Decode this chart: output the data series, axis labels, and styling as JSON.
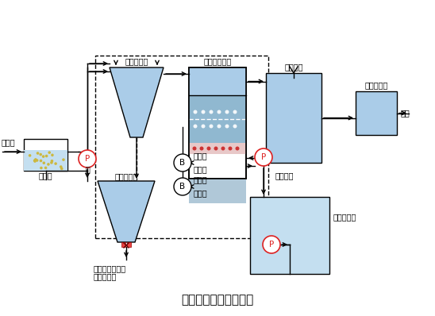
{
  "title": "生物滤池污水处理系统",
  "bg_color": "#ffffff",
  "wc": "#aacce8",
  "wc_light": "#c4dff0",
  "wc_dark": "#88b8d8",
  "wc_media": "#90b8d0",
  "lc": "#000000",
  "rc": "#dd2222",
  "sand_color": "#ccb840",
  "labels": {
    "yuan_wu_shui": "原污水",
    "chen_sha_chi": "沉砂池",
    "beng": "泵",
    "chu_ci_chen_dian": "初次沉淀池",
    "wu_ni_nong_suo": "污泥浓缩池",
    "wu_ni_chu_li1": "污泥处理设备或",
    "wu_ni_chu_li2": "系统外排放",
    "bao_qi_sheng_wu": "曝气生物滤池",
    "fan_chong_yong1": "反冲用",
    "fan_chong_yong2": "空压机",
    "bao_qi_yong1": "曝气用",
    "bao_qi_yong2": "空压机",
    "chu_li_shui": "处理水池",
    "fan_chong_xi_shui": "反冲洗水",
    "fan_chong_xi_chi": "反冲洗水池",
    "tou_yang_hun_he": "投氧混合池",
    "fang_liu": "放流"
  },
  "fs": 7.0,
  "fs_title": 11
}
